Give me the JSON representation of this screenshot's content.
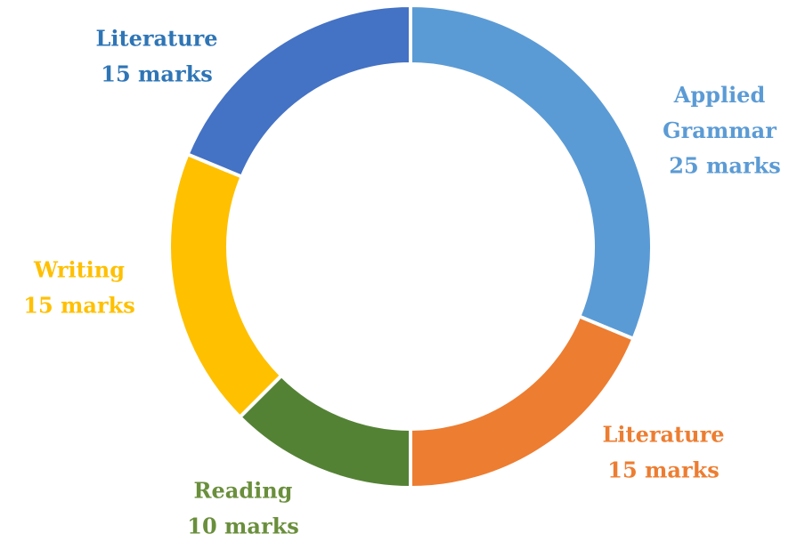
{
  "chart_data": {
    "type": "donut",
    "categories": [
      "Applied Grammar",
      "Literature",
      "Reading",
      "Writing",
      "Literature"
    ],
    "values": [
      25,
      15,
      10,
      15,
      15
    ],
    "value_labels": [
      "25 marks",
      "15 marks",
      "10 marks",
      "15 marks",
      "15 marks"
    ],
    "colors": [
      "#5b9bd5",
      "#ed7d31",
      "#548235",
      "#ffc000",
      "#4472c4"
    ],
    "label_colors": [
      "#5b9bd5",
      "#ed7d31",
      "#6a8f3c",
      "#ffc000",
      "#2e75b6"
    ]
  }
}
